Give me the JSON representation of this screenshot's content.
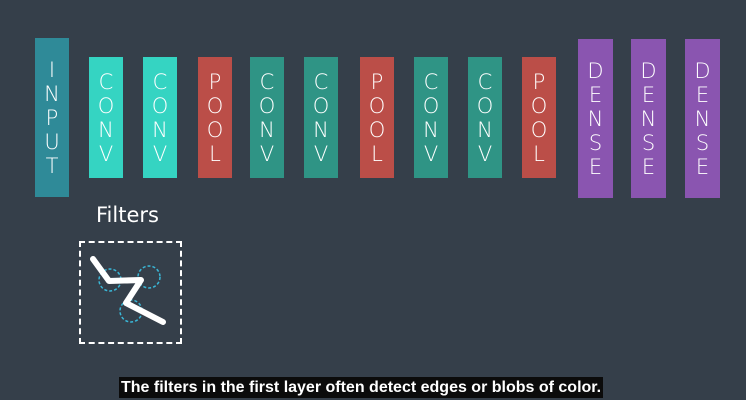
{
  "layers": [
    {
      "label": "INPUT",
      "color": "#2f8a98"
    },
    {
      "label": "CONV",
      "color": "#35d4c2"
    },
    {
      "label": "CONV",
      "color": "#35d4c2"
    },
    {
      "label": "POOL",
      "color": "#bb4e48"
    },
    {
      "label": "CONV",
      "color": "#2f9485"
    },
    {
      "label": "CONV",
      "color": "#2f9485"
    },
    {
      "label": "POOL",
      "color": "#bb4e48"
    },
    {
      "label": "CONV",
      "color": "#2f9485"
    },
    {
      "label": "CONV",
      "color": "#2f9485"
    },
    {
      "label": "POOL",
      "color": "#bb4e48"
    },
    {
      "label": "DENSE",
      "color": "#8a55b0"
    },
    {
      "label": "DENSE",
      "color": "#8a55b0"
    },
    {
      "label": "DENSE",
      "color": "#8a55b0"
    }
  ],
  "filters_label": "Filters",
  "filter_icon": "edges-blobs-filter-icon",
  "subtitle": "The filters in the first layer often detect edges or blobs of color.",
  "colors": {
    "background": "#353f4a",
    "blob_outline": "#3ab8d8"
  }
}
